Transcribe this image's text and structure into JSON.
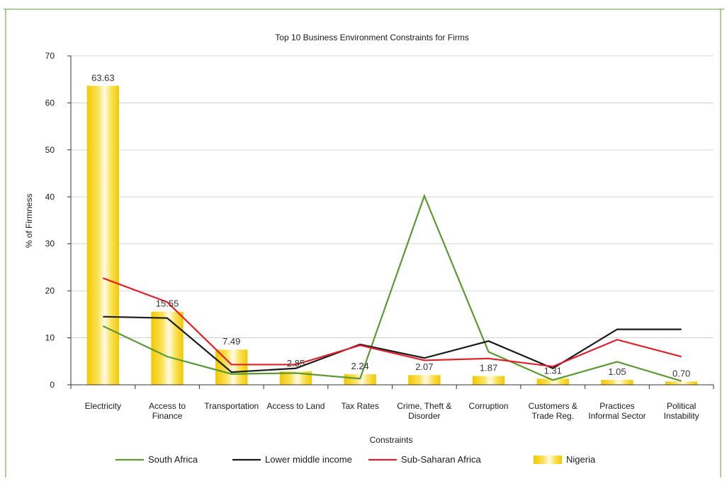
{
  "chart_data": {
    "type": "bar",
    "title": "Top 10 Business Environment Constraints for Firms",
    "xlabel": "Constraints",
    "ylabel": "% of Firmness",
    "ylim": [
      0,
      70
    ],
    "yticks": [
      0,
      10,
      20,
      30,
      40,
      50,
      60,
      70
    ],
    "grid": true,
    "legend_position": "bottom",
    "categories": [
      [
        "Electricity"
      ],
      [
        "Access to",
        "Finance"
      ],
      [
        "Transportation"
      ],
      [
        "Access to Land"
      ],
      [
        "Tax Rates"
      ],
      [
        "Crime, Theft &",
        "Disorder"
      ],
      [
        "Corruption"
      ],
      [
        "Customers &",
        "Trade Reg."
      ],
      [
        "Practices",
        "Informal Sector"
      ],
      [
        "Political",
        "Instability"
      ]
    ],
    "bar_series": {
      "name": "Nigeria",
      "values": [
        63.63,
        15.55,
        7.49,
        2.85,
        2.24,
        2.07,
        1.87,
        1.31,
        1.05,
        0.7
      ],
      "labels": [
        "63.63",
        "15.55",
        "7.49",
        "2.85",
        "2.24",
        "2.07",
        "1.87",
        "1.31",
        "1.05",
        "0.70"
      ],
      "color": "#f5d000"
    },
    "line_series": [
      {
        "name": "South Africa",
        "color": "#5a9a30",
        "values": [
          12.5,
          6.0,
          2.3,
          2.5,
          1.3,
          40.2,
          7.0,
          1.0,
          4.9,
          0.8
        ]
      },
      {
        "name": "Lower middle income",
        "color": "#1a1a1a",
        "values": [
          14.5,
          14.2,
          2.7,
          3.5,
          8.6,
          5.7,
          9.3,
          3.5,
          11.8,
          11.8
        ]
      },
      {
        "name": "Sub-Saharan Africa",
        "color": "#e0202a",
        "values": [
          22.7,
          17.6,
          4.3,
          4.3,
          8.4,
          5.2,
          5.6,
          3.9,
          9.6,
          6.0
        ]
      }
    ]
  }
}
